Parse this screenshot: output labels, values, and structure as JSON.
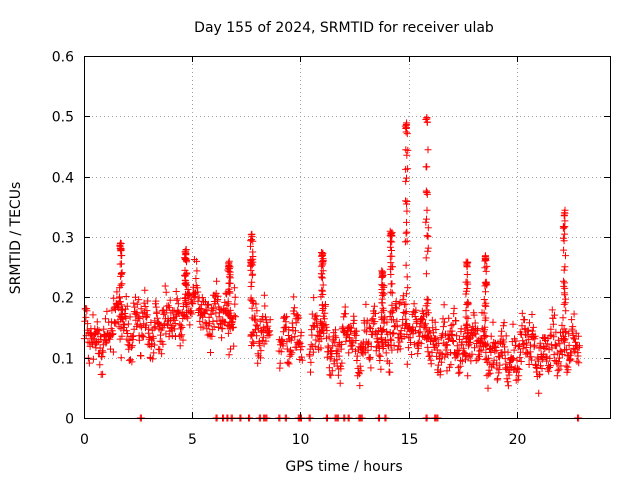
{
  "chart_data": {
    "type": "scatter",
    "title": "Day 155 of 2024, SRMTID for receiver ulab",
    "xlabel": "GPS time / hours",
    "ylabel": "SRMTID / TECUs",
    "xlim": [
      0,
      24.3
    ],
    "ylim": [
      0,
      0.6
    ],
    "x_ticks": [
      0,
      5,
      10,
      15,
      20
    ],
    "x_tick_labels": [
      "0",
      "5",
      "10",
      "15",
      "20"
    ],
    "y_ticks": [
      0,
      0.1,
      0.2,
      0.3,
      0.4,
      0.5,
      0.6
    ],
    "y_tick_labels": [
      "0",
      "0.1",
      "0.2",
      "0.3",
      "0.4",
      "0.5",
      "0.6"
    ],
    "grid": true,
    "marker": "+",
    "color": "#ff0000",
    "trend": {
      "x": [
        0,
        0.5,
        1,
        1.5,
        2,
        2.5,
        3,
        3.5,
        4,
        4.5,
        5,
        5.5,
        6,
        6.5,
        7,
        7.5,
        8,
        8.5,
        9,
        9.5,
        10,
        10.5,
        11,
        11.5,
        12,
        12.5,
        13,
        13.5,
        14,
        14.5,
        15,
        15.5,
        16,
        16.5,
        17,
        17.5,
        18,
        18.5,
        19,
        19.5,
        20,
        20.5,
        21,
        21.5,
        22,
        22.5,
        23
      ],
      "y": [
        0.14,
        0.12,
        0.14,
        0.15,
        0.16,
        0.15,
        0.15,
        0.16,
        0.16,
        0.18,
        0.19,
        0.18,
        0.17,
        0.16,
        0.17,
        0.15,
        0.14,
        0.15,
        0.14,
        0.14,
        0.13,
        0.14,
        0.14,
        0.12,
        0.13,
        0.12,
        0.13,
        0.12,
        0.14,
        0.14,
        0.16,
        0.14,
        0.13,
        0.13,
        0.12,
        0.12,
        0.13,
        0.12,
        0.11,
        0.1,
        0.11,
        0.12,
        0.11,
        0.11,
        0.12,
        0.12,
        0.12
      ]
    },
    "spread": 0.035,
    "data_gaps": [
      [
        7.0,
        7.7
      ],
      [
        8.6,
        9.0
      ],
      [
        10.1,
        10.4
      ]
    ],
    "spikes": [
      {
        "x": 1.7,
        "peak": 0.29
      },
      {
        "x": 4.7,
        "peak": 0.28
      },
      {
        "x": 6.7,
        "peak": 0.26
      },
      {
        "x": 7.75,
        "peak": 0.305
      },
      {
        "x": 11.0,
        "peak": 0.275
      },
      {
        "x": 13.8,
        "peak": 0.245
      },
      {
        "x": 14.2,
        "peak": 0.31
      },
      {
        "x": 14.9,
        "peak": 0.49
      },
      {
        "x": 15.85,
        "peak": 0.5
      },
      {
        "x": 17.7,
        "peak": 0.26
      },
      {
        "x": 18.55,
        "peak": 0.27
      },
      {
        "x": 22.2,
        "peak": 0.345
      }
    ],
    "zero_points_x": [
      2.6,
      6.1,
      6.4,
      6.6,
      6.8,
      7.2,
      7.6,
      8.1,
      8.3,
      8.4,
      9.0,
      9.3,
      9.9,
      10.0,
      10.4,
      11.2,
      11.6,
      11.7,
      12.0,
      12.2,
      12.7,
      12.8,
      13.6,
      13.9,
      15.8,
      16.2,
      16.3,
      22.8
    ]
  }
}
